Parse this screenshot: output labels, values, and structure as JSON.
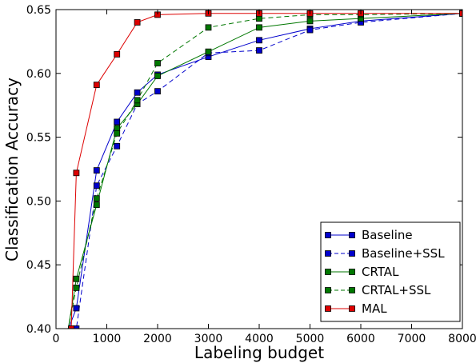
{
  "chart_data": {
    "type": "line",
    "xlabel": "Labeling budget",
    "ylabel": "Classification Accuracy",
    "xlim": [
      0,
      8000
    ],
    "ylim": [
      0.4,
      0.65
    ],
    "xticks": [
      "0",
      "1000",
      "2000",
      "3000",
      "4000",
      "5000",
      "6000",
      "7000",
      "8000"
    ],
    "yticks": [
      "0.40",
      "0.45",
      "0.50",
      "0.55",
      "0.60",
      "0.65"
    ],
    "legend_position": "bottom-right",
    "grid": false,
    "series": [
      {
        "name": "Baseline",
        "color": "#0000cc",
        "dashed": false,
        "x": [
          200,
          400,
          800,
          1200,
          1600,
          2000,
          3000,
          4000,
          5000,
          6000,
          8000
        ],
        "y": [
          0.395,
          0.416,
          0.524,
          0.562,
          0.585,
          0.599,
          0.613,
          0.626,
          0.635,
          0.641,
          0.647
        ]
      },
      {
        "name": "Baseline+SSL",
        "color": "#0000cc",
        "dashed": true,
        "x": [
          200,
          400,
          800,
          1200,
          1600,
          2000,
          3000,
          4000,
          5000,
          6000,
          8000
        ],
        "y": [
          0.385,
          0.4,
          0.512,
          0.543,
          0.576,
          0.586,
          0.616,
          0.618,
          0.634,
          0.64,
          0.647
        ]
      },
      {
        "name": "CRTAL",
        "color": "#007700",
        "dashed": false,
        "x": [
          200,
          400,
          800,
          1200,
          1600,
          2000,
          3000,
          4000,
          5000,
          6000,
          8000
        ],
        "y": [
          0.39,
          0.439,
          0.497,
          0.557,
          0.576,
          0.598,
          0.617,
          0.636,
          0.641,
          0.643,
          0.647
        ]
      },
      {
        "name": "CRTAL+SSL",
        "color": "#007700",
        "dashed": true,
        "x": [
          200,
          400,
          800,
          1200,
          1600,
          2000,
          3000,
          4000,
          5000,
          6000,
          8000
        ],
        "y": [
          0.392,
          0.432,
          0.502,
          0.553,
          0.579,
          0.608,
          0.636,
          0.643,
          0.646,
          0.646,
          0.647
        ]
      },
      {
        "name": "MAL",
        "color": "#dd0000",
        "dashed": false,
        "x": [
          300,
          400,
          800,
          1200,
          1600,
          2000,
          3000,
          4000,
          5000,
          6000,
          8000
        ],
        "y": [
          0.4,
          0.522,
          0.591,
          0.615,
          0.64,
          0.646,
          0.647,
          0.647,
          0.647,
          0.647,
          0.647
        ]
      }
    ]
  }
}
